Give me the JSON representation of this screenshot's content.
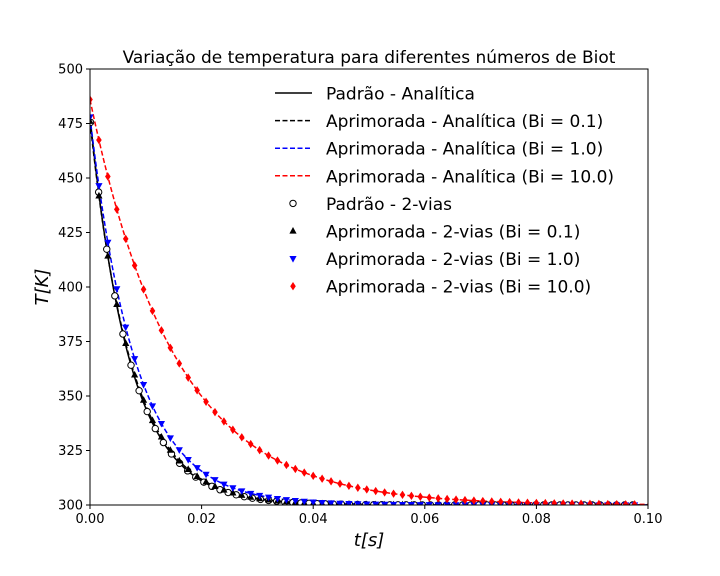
{
  "chart_data": {
    "type": "line",
    "title": "Variação de temperatura para diferentes números de Biot",
    "xlabel": "t[s]",
    "ylabel": "T[K]",
    "xlim": [
      0,
      0.1
    ],
    "ylim": [
      300,
      500
    ],
    "x_ticks": [
      "0.00",
      "0.02",
      "0.04",
      "0.06",
      "0.08",
      "0.10"
    ],
    "y_ticks": [
      "300",
      "325",
      "350",
      "375",
      "400",
      "425",
      "450",
      "475",
      "500"
    ],
    "grid": false,
    "legend_position": "top-right",
    "curve_model": "T(t) = 300 + A·exp(−t/τ)",
    "series": [
      {
        "name": "Padrão - Analítica",
        "kind": "line",
        "style": "solid",
        "color": "#000000",
        "A": 178,
        "tau": 0.0072
      },
      {
        "name": "Aprimorada - Analítica (Bi = 0.1)",
        "kind": "line",
        "style": "dashed",
        "color": "#000000",
        "A": 176,
        "tau": 0.0074
      },
      {
        "name": "Aprimorada - Analítica (Bi = 1.0)",
        "kind": "line",
        "style": "dashed",
        "color": "#0000ff",
        "A": 178,
        "tau": 0.0082
      },
      {
        "name": "Aprimorada - Analítica (Bi = 10.0)",
        "kind": "line",
        "style": "dashed",
        "color": "#ff0000",
        "A": 186,
        "tau": 0.0152
      },
      {
        "name": "Padrão - 2-vias",
        "kind": "marker",
        "marker": "circle-open",
        "color": "#000000",
        "A": 178,
        "tau": 0.0072,
        "x0": 0.0001,
        "dx": 0.00145
      },
      {
        "name": "Aprimorada - 2-vias (Bi = 0.1)",
        "kind": "marker",
        "marker": "triangle-up",
        "color": "#000000",
        "A": 176,
        "tau": 0.0074,
        "x0": 0.0,
        "dx": 0.0016
      },
      {
        "name": "Aprimorada - 2-vias (Bi = 1.0)",
        "kind": "marker",
        "marker": "triangle-down",
        "color": "#0000ff",
        "A": 178,
        "tau": 0.0082,
        "x0": 0.0,
        "dx": 0.0016
      },
      {
        "name": "Aprimorada - 2-vias (Bi = 10.0)",
        "kind": "marker",
        "marker": "diamond",
        "color": "#ff0000",
        "A": 186,
        "tau": 0.0152,
        "x0": 0.0,
        "dx": 0.0016
      }
    ]
  }
}
